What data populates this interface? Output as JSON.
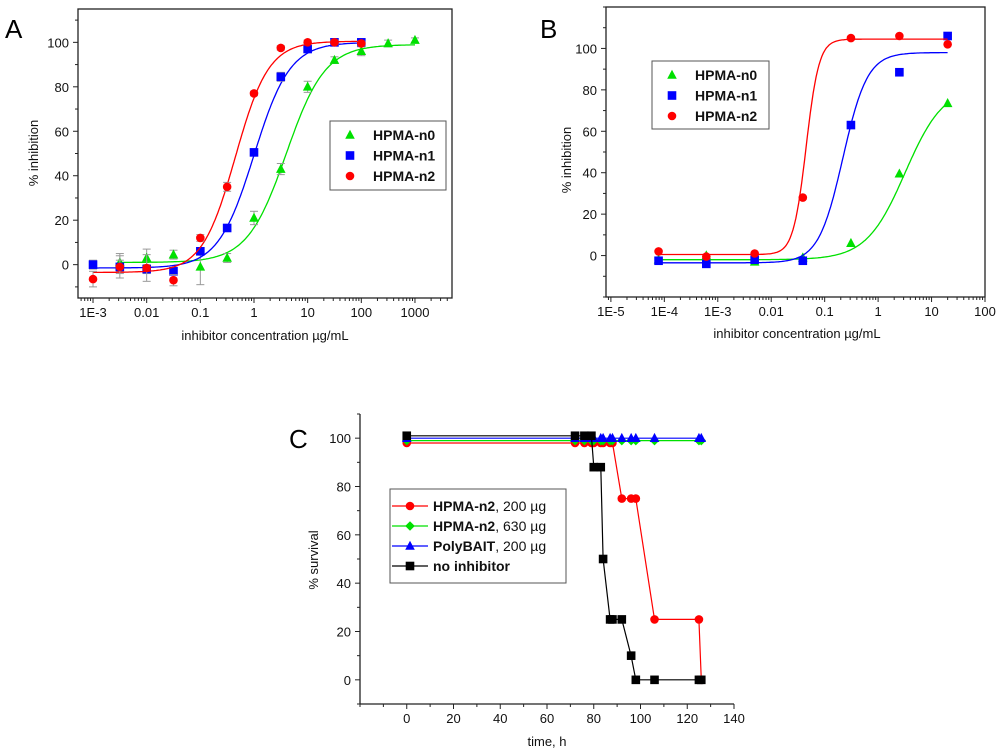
{
  "chart_data": [
    {
      "type": "scatter",
      "panel_label": "A",
      "xlabel": "inhibitor concentration µg/mL",
      "ylabel": "% inhibition",
      "xscale": "log",
      "xlim": [
        0.000525,
        4900
      ],
      "ylim": [
        -15,
        115
      ],
      "xticks": [
        0.001,
        0.01,
        0.1,
        1,
        10,
        100,
        1000
      ],
      "xtick_labels": [
        "1E-3",
        "0.01",
        "0.1",
        "1",
        "10",
        "100",
        "1000"
      ],
      "yticks": [
        0,
        20,
        40,
        60,
        80,
        100
      ],
      "ytick_labels": [
        "0",
        "20",
        "40",
        "60",
        "80",
        "100"
      ],
      "legend_position": "center-right",
      "frame": "box",
      "series": [
        {
          "name": "HPMA-n0",
          "color": "#00e000",
          "marker": "triangle",
          "x": [
            0.00316,
            0.01,
            0.0316,
            0.1,
            0.316,
            1,
            3.16,
            10,
            31.6,
            100,
            316,
            1000
          ],
          "y": [
            1,
            3,
            4.5,
            -1,
            3,
            21,
            43,
            80,
            92,
            96,
            99.5,
            101
          ],
          "err": [
            4,
            4,
            2,
            8,
            2,
            3,
            2.5,
            2.5,
            1.5,
            2,
            1.5,
            1
          ],
          "fit": {
            "bottom": 1,
            "top": 99,
            "ec50": 4,
            "hill": 1.2
          }
        },
        {
          "name": "HPMA-n1",
          "color": "#0000ff",
          "marker": "square",
          "x": [
            0.001,
            0.00316,
            0.01,
            0.0316,
            0.1,
            0.316,
            1,
            3.16,
            10,
            31.6,
            100
          ],
          "y": [
            0,
            -1,
            -2,
            -3,
            6,
            16.5,
            50.5,
            84.5,
            97,
            100,
            100
          ],
          "err": [
            2,
            3,
            2,
            1.5,
            1.5,
            1,
            1,
            2,
            1,
            1,
            1
          ],
          "fit": {
            "bottom": -1.5,
            "top": 100,
            "ec50": 1,
            "hill": 1.3
          }
        },
        {
          "name": "HPMA-n2",
          "color": "#ff0000",
          "marker": "circle",
          "x": [
            0.001,
            0.00316,
            0.01,
            0.0316,
            0.1,
            0.316,
            1,
            3.16,
            10,
            31.6,
            100
          ],
          "y": [
            -6.5,
            -1,
            -1.5,
            -7,
            12,
            35,
            77,
            97.5,
            100,
            100,
            99.5
          ],
          "err": [
            3.5,
            5,
            6,
            2.5,
            1.5,
            2,
            1,
            1,
            1,
            1,
            1
          ],
          "fit": {
            "bottom": -3.5,
            "top": 100.5,
            "ec50": 0.45,
            "hill": 1.4
          }
        }
      ]
    },
    {
      "type": "scatter",
      "panel_label": "B",
      "xlabel": "inhibitor concentration µg/mL",
      "ylabel": "% inhibition",
      "xscale": "log",
      "xlim": [
        8.1e-06,
        100
      ],
      "ylim": [
        -20,
        120
      ],
      "xticks": [
        1e-05,
        0.0001,
        0.001,
        0.01,
        0.1,
        1,
        10,
        100
      ],
      "xtick_labels": [
        "1E-5",
        "1E-4",
        "1E-3",
        "0.01",
        "0.1",
        "1",
        "10",
        "100"
      ],
      "yticks": [
        0,
        20,
        40,
        60,
        80,
        100
      ],
      "ytick_labels": [
        "0",
        "20",
        "40",
        "60",
        "80",
        "100"
      ],
      "legend_position": "top-left",
      "frame": "box",
      "series": [
        {
          "name": "HPMA-n0",
          "color": "#00e000",
          "marker": "triangle",
          "x": [
            7.8e-05,
            0.00061,
            0.0049,
            0.039,
            0.31,
            2.5,
            20
          ],
          "y": [
            -2,
            0,
            -3,
            -1,
            6,
            39.5,
            73.5
          ],
          "fit": {
            "bottom": -2,
            "top": 82,
            "ec50": 3.2,
            "hill": 1.2
          }
        },
        {
          "name": "HPMA-n1",
          "color": "#0000ff",
          "marker": "square",
          "x": [
            7.8e-05,
            0.00061,
            0.0049,
            0.039,
            0.31,
            2.5,
            20
          ],
          "y": [
            -2.5,
            -4,
            -2,
            -2.5,
            63,
            88.5,
            106
          ],
          "fit": {
            "bottom": -3.5,
            "top": 98,
            "ec50": 0.22,
            "hill": 1.9
          }
        },
        {
          "name": "HPMA-n2",
          "color": "#ff0000",
          "marker": "circle",
          "x": [
            7.8e-05,
            0.00061,
            0.0049,
            0.039,
            0.31,
            2.5,
            20
          ],
          "y": [
            2,
            -0.5,
            1,
            28,
            105,
            106,
            102
          ],
          "fit": {
            "bottom": 0.5,
            "top": 104.5,
            "ec50": 0.045,
            "hill": 3.6
          }
        }
      ]
    },
    {
      "type": "line",
      "panel_label": "C",
      "xlabel": "time, h",
      "ylabel": "% survival",
      "xscale": "linear",
      "xlim": [
        -20,
        140
      ],
      "ylim": [
        -10,
        110
      ],
      "xticks": [
        0,
        20,
        40,
        60,
        80,
        100,
        120,
        140
      ],
      "xtick_labels": [
        "0",
        "20",
        "40",
        "60",
        "80",
        "100",
        "120",
        "140"
      ],
      "yticks": [
        0,
        20,
        40,
        60,
        80,
        100
      ],
      "ytick_labels": [
        "0",
        "20",
        "40",
        "60",
        "80",
        "100"
      ],
      "legend_position": "center-left",
      "frame": "axes",
      "series": [
        {
          "name": "HPMA-n2",
          "suffix": ", 200 µg",
          "color": "#ff0000",
          "marker": "circle",
          "x": [
            0,
            72,
            76,
            79,
            80,
            83,
            84,
            87,
            88,
            92,
            96,
            98,
            106,
            125,
            126
          ],
          "y": [
            98,
            98,
            98,
            98,
            98,
            98,
            98,
            98,
            98,
            75,
            75,
            75,
            25,
            25,
            0
          ]
        },
        {
          "name": "HPMA-n2",
          "suffix": ", 630 µg",
          "color": "#00e000",
          "marker": "diamond",
          "x": [
            0,
            72,
            76,
            79,
            80,
            83,
            84,
            87,
            88,
            92,
            96,
            98,
            106,
            125,
            126
          ],
          "y": [
            99,
            99,
            99,
            99,
            99,
            99,
            99,
            99,
            99,
            99,
            99,
            99,
            99,
            99,
            99
          ]
        },
        {
          "name": "PolyBAIT",
          "suffix": ", 200 µg",
          "color": "#0000ff",
          "marker": "triangle",
          "x": [
            0,
            72,
            76,
            79,
            80,
            83,
            84,
            87,
            88,
            92,
            96,
            98,
            106,
            125,
            126
          ],
          "y": [
            100,
            100,
            100,
            100,
            100,
            100,
            100,
            100,
            100,
            100,
            100,
            100,
            100,
            100,
            100
          ]
        },
        {
          "name": "no inhibitor",
          "suffix": "",
          "color": "#000000",
          "marker": "square",
          "x": [
            0,
            72,
            76,
            79,
            80,
            83,
            84,
            87,
            88,
            92,
            96,
            98,
            106,
            125,
            126
          ],
          "y": [
            101,
            101,
            101,
            101,
            88,
            88,
            50,
            25,
            25,
            25,
            10,
            0,
            0,
            0,
            0
          ]
        }
      ]
    }
  ]
}
